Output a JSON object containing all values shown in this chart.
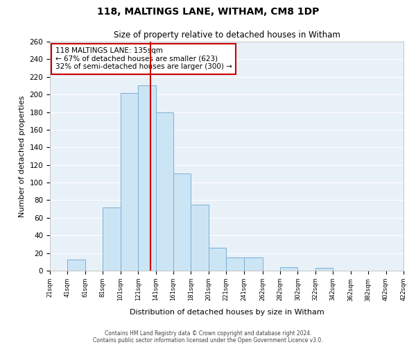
{
  "title": "118, MALTINGS LANE, WITHAM, CM8 1DP",
  "subtitle": "Size of property relative to detached houses in Witham",
  "xlabel": "Distribution of detached houses by size in Witham",
  "ylabel": "Number of detached properties",
  "bar_color": "#cce5f5",
  "bar_edge_color": "#7ab0d4",
  "background_color": "#e8f0f8",
  "grid_color": "#ffffff",
  "property_line_x": 135,
  "property_line_color": "#cc0000",
  "bin_edges": [
    21,
    41,
    61,
    81,
    101,
    121,
    141,
    161,
    181,
    201,
    221,
    241,
    262,
    282,
    302,
    322,
    342,
    362,
    382,
    402,
    422
  ],
  "bin_labels": [
    "21sqm",
    "41sqm",
    "61sqm",
    "81sqm",
    "101sqm",
    "121sqm",
    "141sqm",
    "161sqm",
    "181sqm",
    "201sqm",
    "221sqm",
    "241sqm",
    "262sqm",
    "282sqm",
    "302sqm",
    "322sqm",
    "342sqm",
    "362sqm",
    "382sqm",
    "402sqm",
    "422sqm"
  ],
  "counts": [
    0,
    13,
    0,
    72,
    202,
    210,
    180,
    110,
    75,
    26,
    15,
    15,
    0,
    4,
    0,
    3,
    0,
    0,
    0,
    0,
    1
  ],
  "annotation_title": "118 MALTINGS LANE: 135sqm",
  "annotation_line1": "← 67% of detached houses are smaller (623)",
  "annotation_line2": "32% of semi-detached houses are larger (300) →",
  "annotation_box_color": "#ffffff",
  "annotation_box_edge_color": "#cc0000",
  "ylim": [
    0,
    260
  ],
  "yticks": [
    0,
    20,
    40,
    60,
    80,
    100,
    120,
    140,
    160,
    180,
    200,
    220,
    240,
    260
  ],
  "footer_line1": "Contains HM Land Registry data © Crown copyright and database right 2024.",
  "footer_line2": "Contains public sector information licensed under the Open Government Licence v3.0."
}
